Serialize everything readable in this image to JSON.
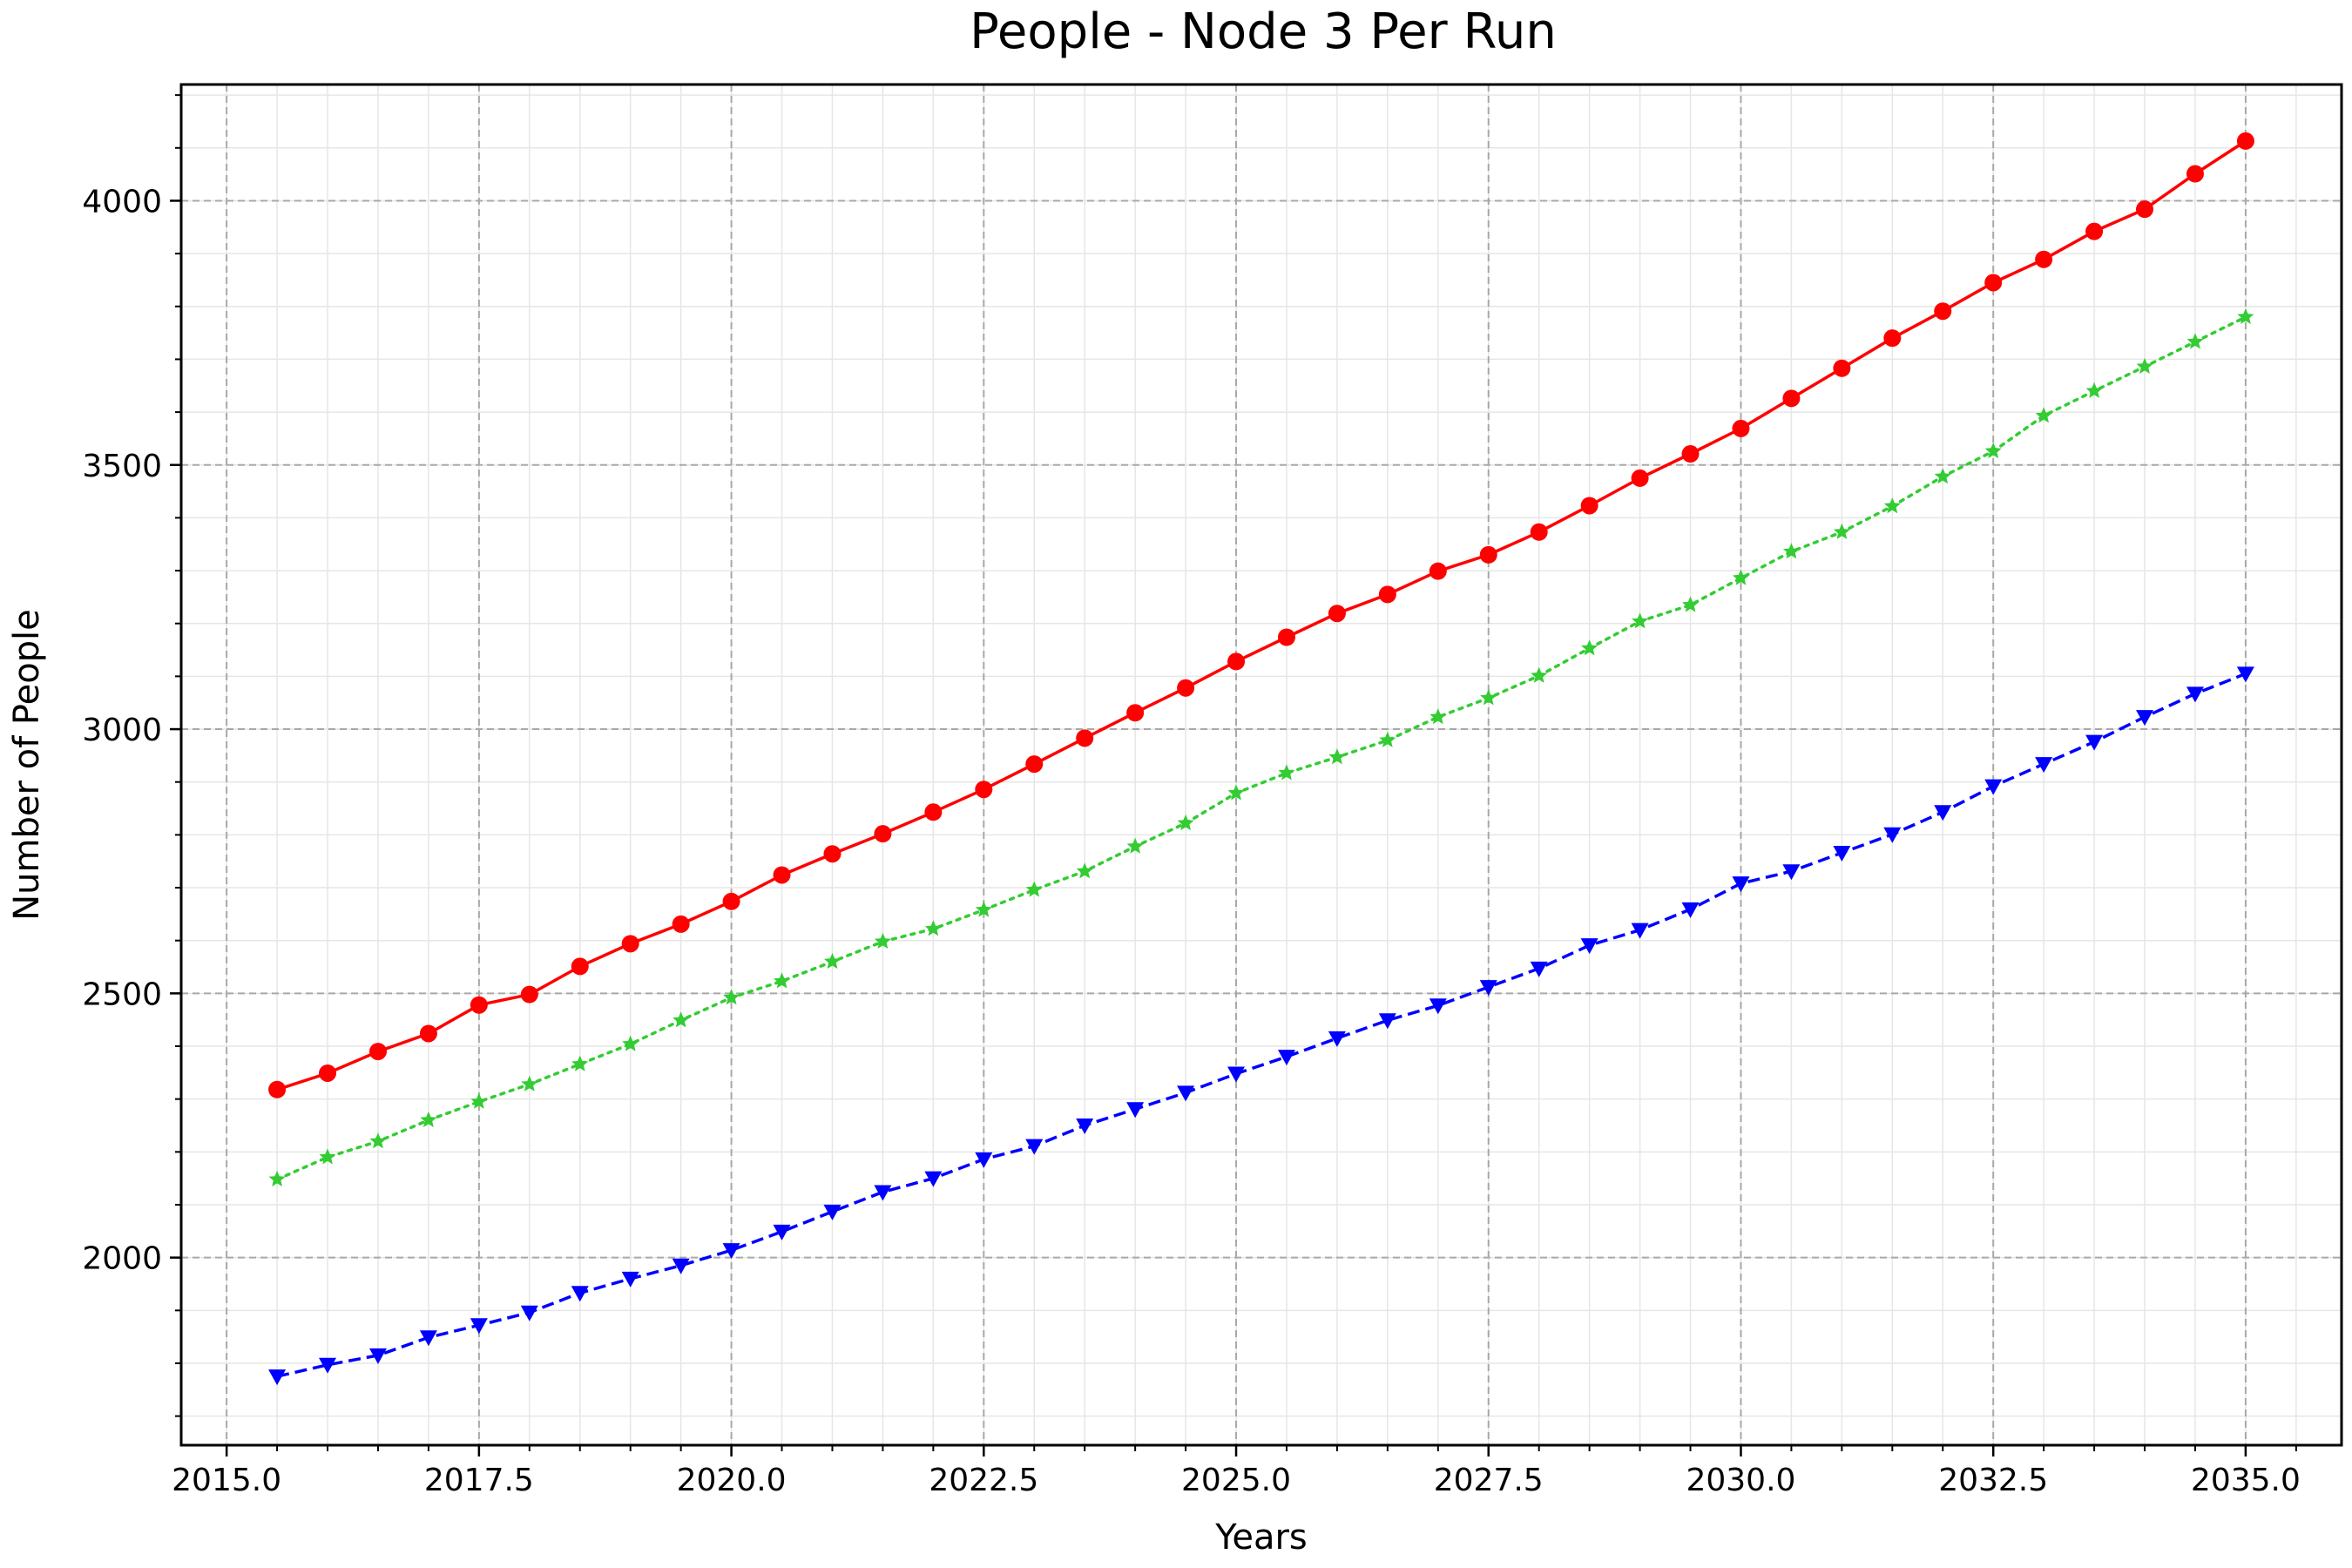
{
  "chart_data": {
    "type": "line",
    "title": "People - Node 3 Per Run",
    "xlabel": "Years",
    "ylabel": "Number of People",
    "xlim": [
      2014.55,
      2035.95
    ],
    "ylim": [
      1645,
      4220
    ],
    "xticks": [
      2015.0,
      2017.5,
      2020.0,
      2022.5,
      2025.0,
      2027.5,
      2030.0,
      2032.5,
      2035.0
    ],
    "xtick_labels": [
      "2015.0",
      "2017.5",
      "2020.0",
      "2022.5",
      "2025.0",
      "2027.5",
      "2030.0",
      "2032.5",
      "2035.0"
    ],
    "yticks": [
      2000,
      2500,
      3000,
      3500,
      4000
    ],
    "ytick_labels": [
      "2000",
      "2500",
      "3000",
      "3500",
      "4000"
    ],
    "grid": true,
    "minor_grid": true,
    "x": [
      2015.5,
      2016.0,
      2016.5,
      2017.0,
      2017.5,
      2018.0,
      2018.5,
      2019.0,
      2019.5,
      2020.0,
      2020.5,
      2021.0,
      2021.5,
      2022.0,
      2022.5,
      2023.0,
      2023.5,
      2024.0,
      2024.5,
      2025.0,
      2025.5,
      2026.0,
      2026.5,
      2027.0,
      2027.5,
      2028.0,
      2028.5,
      2029.0,
      2029.5,
      2030.0,
      2030.5,
      2031.0,
      2031.5,
      2032.0,
      2032.5,
      2033.0,
      2033.5,
      2034.0,
      2034.5,
      2035.0
    ],
    "series": [
      {
        "color": "#ff0000",
        "marker": "circle",
        "linestyle": "solid",
        "values": [
          2318,
          2349,
          2390,
          2424,
          2478,
          2498,
          2551,
          2594,
          2631,
          2674,
          2724,
          2764,
          2802,
          2843,
          2886,
          2934,
          2983,
          3031,
          3078,
          3128,
          3174,
          3219,
          3255,
          3299,
          3330,
          3373,
          3423,
          3475,
          3521,
          3569,
          3626,
          3683,
          3740,
          3791,
          3845,
          3889,
          3942,
          3984,
          4051,
          4113
        ]
      },
      {
        "color": "#33cc33",
        "marker": "star",
        "linestyle": "dotted",
        "values": [
          2148,
          2190,
          2220,
          2260,
          2295,
          2328,
          2366,
          2404,
          2449,
          2492,
          2523,
          2560,
          2598,
          2622,
          2658,
          2696,
          2731,
          2778,
          2822,
          2879,
          2917,
          2947,
          2979,
          3023,
          3059,
          3101,
          3153,
          3204,
          3235,
          3286,
          3336,
          3373,
          3422,
          3478,
          3526,
          3593,
          3640,
          3686,
          3733,
          3780
        ]
      },
      {
        "color": "#0000ff",
        "marker": "triangle-down",
        "linestyle": "dashed",
        "values": [
          1775,
          1797,
          1815,
          1849,
          1872,
          1896,
          1933,
          1960,
          1985,
          2014,
          2049,
          2087,
          2124,
          2150,
          2186,
          2211,
          2250,
          2281,
          2312,
          2348,
          2380,
          2415,
          2449,
          2477,
          2512,
          2547,
          2591,
          2620,
          2659,
          2708,
          2731,
          2766,
          2801,
          2843,
          2892,
          2934,
          2976,
          3023,
          3067,
          3105
        ]
      }
    ]
  }
}
